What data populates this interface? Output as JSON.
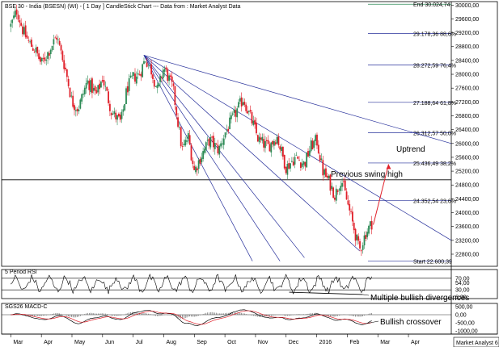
{
  "chart_data": {
    "type": "candlestick",
    "title": "BSE 30 - India (BSESN) (WI) - [ 1 Day ] CandleStick Chart --- Data from : Market Analyst Data",
    "watermark": "Market Analyst 6",
    "colors": {
      "up": "#2e8b57",
      "down": "#e0202a",
      "fan": "#27309b",
      "fib": "#27309b",
      "end": "#2e8b57",
      "rsi_line": "#000000",
      "macd_line": "#000000",
      "signal_line": "#e0202a"
    },
    "x_labels": [
      "Mar",
      "Apr",
      "May",
      "Jun",
      "Jul",
      "Aug",
      "Sep",
      "Oct",
      "Nov",
      "Dec",
      "2016",
      "Feb",
      "Mar",
      "Apr"
    ],
    "x_months": [
      0,
      1,
      2,
      3,
      4,
      5,
      6,
      7,
      8,
      9,
      10,
      11,
      12,
      13
    ],
    "xlim": [
      -0.3,
      14.4
    ],
    "y_ticks": [
      22800,
      23200,
      23600,
      24000,
      24400,
      24800,
      25200,
      25600,
      26000,
      26400,
      26800,
      27200,
      27600,
      28000,
      28400,
      28800,
      29200,
      29600,
      30000
    ],
    "y_tick_labels": [
      "22800,00",
      "23200,00",
      "23600,00",
      "24000,00",
      "24400,00",
      "24800,00",
      "25200,00",
      "25600,00",
      "26000,00",
      "26400,00",
      "26800,00",
      "27200,00",
      "27600,00",
      "28000,00",
      "28400,00",
      "28800,00",
      "29200,00",
      "29600,00",
      "30000,00"
    ],
    "ylim": [
      22450,
      30100
    ],
    "price_path": [
      [
        0.0,
        29400
      ],
      [
        0.2,
        29850
      ],
      [
        0.4,
        29250
      ],
      [
        0.6,
        28900
      ],
      [
        0.8,
        28700
      ],
      [
        1.0,
        28300
      ],
      [
        1.2,
        28600
      ],
      [
        1.5,
        29100
      ],
      [
        1.8,
        28100
      ],
      [
        2.0,
        27200
      ],
      [
        2.2,
        27000
      ],
      [
        2.5,
        27800
      ],
      [
        2.8,
        27400
      ],
      [
        3.0,
        27900
      ],
      [
        3.3,
        26900
      ],
      [
        3.6,
        26600
      ],
      [
        3.8,
        27600
      ],
      [
        4.0,
        27900
      ],
      [
        4.2,
        28000
      ],
      [
        4.4,
        28450
      ],
      [
        4.6,
        28100
      ],
      [
        4.8,
        27500
      ],
      [
        5.0,
        28200
      ],
      [
        5.3,
        27600
      ],
      [
        5.6,
        25800
      ],
      [
        5.8,
        26200
      ],
      [
        6.0,
        25200
      ],
      [
        6.2,
        25600
      ],
      [
        6.5,
        26100
      ],
      [
        6.8,
        25800
      ],
      [
        7.0,
        26300
      ],
      [
        7.3,
        26800
      ],
      [
        7.6,
        27300
      ],
      [
        7.9,
        26600
      ],
      [
        8.1,
        26100
      ],
      [
        8.4,
        25900
      ],
      [
        8.7,
        26200
      ],
      [
        9.0,
        25300
      ],
      [
        9.3,
        25600
      ],
      [
        9.6,
        25400
      ],
      [
        9.8,
        25900
      ],
      [
        10.0,
        26100
      ],
      [
        10.2,
        25200
      ],
      [
        10.4,
        24900
      ],
      [
        10.6,
        24500
      ],
      [
        10.8,
        25000
      ],
      [
        11.0,
        24300
      ],
      [
        11.2,
        23600
      ],
      [
        11.4,
        22900
      ],
      [
        11.6,
        23400
      ],
      [
        11.8,
        23700
      ]
    ],
    "end_level": {
      "label": "End 30.024,74",
      "value": 30024.74
    },
    "fib_levels": [
      {
        "label": "29.178,36 88,6%",
        "value": 29178.36
      },
      {
        "label": "28.272,59 76,4%",
        "value": 28272.59
      },
      {
        "label": "27.188,64 61,8%",
        "value": 27188.64
      },
      {
        "label": "26.312,57 50,0%",
        "value": 26312.57
      },
      {
        "label": "25.436,49 38,2%",
        "value": 25436.49
      },
      {
        "label": "24.352,54 23,6%",
        "value": 24352.54
      },
      {
        "label": "Start 22.600,39",
        "value": 22600.39
      }
    ],
    "fan_origin": [
      4.35,
      28550
    ],
    "fan_targets": [
      [
        14.4,
        26000
      ],
      [
        14.4,
        23200
      ],
      [
        11.4,
        22900
      ],
      [
        9.6,
        22700
      ],
      [
        8.8,
        22600
      ],
      [
        7.9,
        22600
      ]
    ],
    "horizontal_line": 24950,
    "uptrend_arrow": [
      [
        11.85,
        23650
      ],
      [
        12.35,
        25400
      ]
    ],
    "annotations": {
      "uptrend": "Uptrend",
      "swing_high": "Previous swing high",
      "divergence": "Multiple bullish divergences",
      "crossover": "Bullish crossover"
    },
    "rsi": {
      "label": "5 Period RSI",
      "ticks": [
        70,
        54,
        30,
        6
      ],
      "tick_labels": [
        "70,00",
        "54,00",
        "30,00",
        "6,00"
      ],
      "levels": [
        70,
        30
      ],
      "ylim": [
        0,
        100
      ]
    },
    "macd": {
      "label": "SGS26 MACD-C",
      "ticks": [
        500,
        0,
        -500,
        -1000
      ],
      "tick_labels": [
        "500,00",
        "0,00",
        "-500,00",
        "-1000,00"
      ],
      "ylim": [
        -1200,
        700
      ]
    }
  }
}
